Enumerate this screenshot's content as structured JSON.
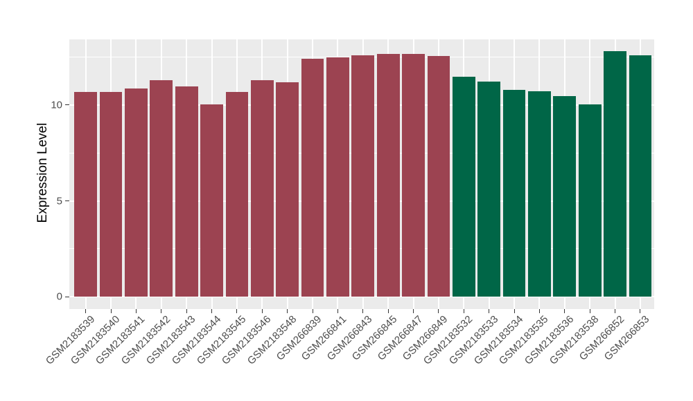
{
  "chart_data": {
    "type": "bar",
    "title": "",
    "xlabel": "",
    "ylabel": "Expression Level",
    "ylim": [
      0,
      13.4
    ],
    "yticks": [
      0,
      5,
      10
    ],
    "yticks_minor": [
      2.5,
      7.5,
      12.5
    ],
    "grid": true,
    "legend": false,
    "panel_bg": "#EBEBEB",
    "grid_color": "#FFFFFF",
    "axis_text_color": "#4D4D4D",
    "tick_mark_color": "#333333",
    "group_colors": {
      "group1": "#9C4351",
      "group2": "#006647"
    },
    "bars": [
      {
        "label": "GSM2183539",
        "value": 10.68,
        "group": "group1"
      },
      {
        "label": "GSM2183540",
        "value": 10.67,
        "group": "group1"
      },
      {
        "label": "GSM2183541",
        "value": 10.85,
        "group": "group1"
      },
      {
        "label": "GSM2183542",
        "value": 11.28,
        "group": "group1"
      },
      {
        "label": "GSM2183543",
        "value": 10.97,
        "group": "group1"
      },
      {
        "label": "GSM2183544",
        "value": 10.02,
        "group": "group1"
      },
      {
        "label": "GSM2183545",
        "value": 10.68,
        "group": "group1"
      },
      {
        "label": "GSM2183546",
        "value": 11.31,
        "group": "group1"
      },
      {
        "label": "GSM2183548",
        "value": 11.19,
        "group": "group1"
      },
      {
        "label": "GSM266839",
        "value": 12.41,
        "group": "group1"
      },
      {
        "label": "GSM266841",
        "value": 12.49,
        "group": "group1"
      },
      {
        "label": "GSM266843",
        "value": 12.59,
        "group": "group1"
      },
      {
        "label": "GSM266845",
        "value": 12.66,
        "group": "group1"
      },
      {
        "label": "GSM266847",
        "value": 12.66,
        "group": "group1"
      },
      {
        "label": "GSM266849",
        "value": 12.56,
        "group": "group1"
      },
      {
        "label": "GSM2183532",
        "value": 11.49,
        "group": "group2"
      },
      {
        "label": "GSM2183533",
        "value": 11.21,
        "group": "group2"
      },
      {
        "label": "GSM2183534",
        "value": 10.8,
        "group": "group2"
      },
      {
        "label": "GSM2183535",
        "value": 10.71,
        "group": "group2"
      },
      {
        "label": "GSM2183536",
        "value": 10.47,
        "group": "group2"
      },
      {
        "label": "GSM2183538",
        "value": 10.04,
        "group": "group2"
      },
      {
        "label": "GSM266852",
        "value": 12.8,
        "group": "group2"
      },
      {
        "label": "GSM266853",
        "value": 12.6,
        "group": "group2"
      }
    ]
  }
}
